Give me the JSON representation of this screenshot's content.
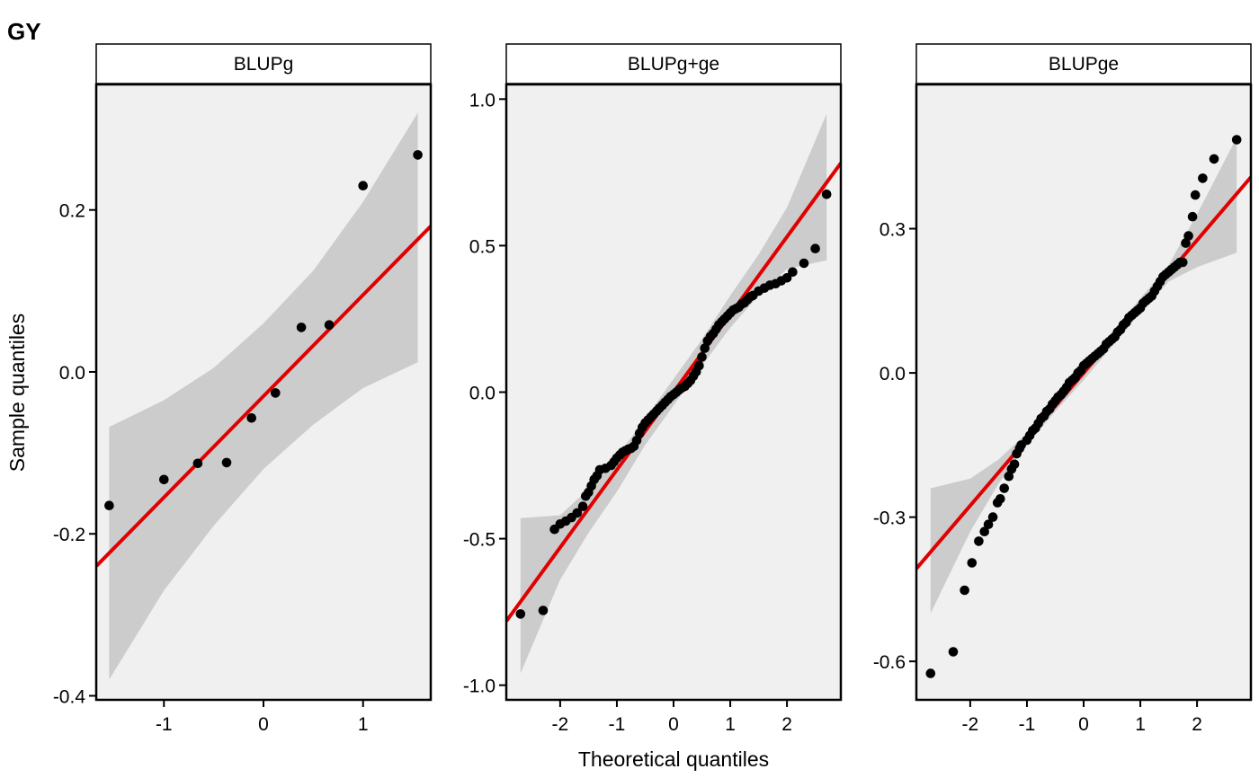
{
  "chart_data": {
    "type": "scatter",
    "subtype": "qq-plot",
    "title": "GY",
    "xlabel": "Theoretical quantiles",
    "ylabel": "Sample quantiles",
    "colors": {
      "panel_background": "#f0f0f0",
      "confidence_band": "#cccccc",
      "reference_line": "#e00000",
      "points": "#000000",
      "strip_background": "#ffffff"
    },
    "panels": [
      {
        "strip": "BLUPg",
        "xlim": [
          -1.68,
          1.68
        ],
        "ylim": [
          -0.405,
          0.355
        ],
        "xticks": [
          -1,
          0,
          1
        ],
        "xtick_labels": [
          "-1",
          "0",
          "1"
        ],
        "yticks": [
          -0.4,
          -0.2,
          0.0,
          0.2
        ],
        "ytick_labels": [
          "-0.4",
          "-0.2",
          "0.0",
          "0.2"
        ],
        "line": {
          "intercept": -0.03,
          "slope": 0.125
        },
        "band": {
          "x": [
            -1.55,
            -1.0,
            -0.5,
            0.0,
            0.5,
            1.0,
            1.55
          ],
          "lower": [
            -0.38,
            -0.27,
            -0.19,
            -0.12,
            -0.065,
            -0.02,
            0.012
          ],
          "upper": [
            -0.068,
            -0.035,
            0.005,
            0.06,
            0.125,
            0.21,
            0.32
          ]
        },
        "points": [
          [
            -1.55,
            -0.165
          ],
          [
            -1.0,
            -0.133
          ],
          [
            -0.66,
            -0.113
          ],
          [
            -0.37,
            -0.112
          ],
          [
            -0.12,
            -0.057
          ],
          [
            0.12,
            -0.026
          ],
          [
            0.38,
            0.055
          ],
          [
            0.66,
            0.058
          ],
          [
            1.0,
            0.23
          ],
          [
            1.55,
            0.268
          ]
        ]
      },
      {
        "strip": "BLUPg+ge",
        "xlim": [
          -2.95,
          2.95
        ],
        "ylim": [
          -1.05,
          1.05
        ],
        "xticks": [
          -2,
          -1,
          0,
          1,
          2
        ],
        "xtick_labels": [
          "-2",
          "-1",
          "0",
          "1",
          "2"
        ],
        "yticks": [
          -1.0,
          -0.5,
          0.0,
          0.5,
          1.0
        ],
        "ytick_labels": [
          "-1.0",
          "-0.5",
          "0.0",
          "0.5",
          "1.0"
        ],
        "line": {
          "intercept": 0.0,
          "slope": 0.265
        },
        "band": {
          "x": [
            -2.7,
            -2.0,
            -1.5,
            -1.0,
            -0.5,
            0.0,
            0.5,
            1.0,
            1.5,
            2.0,
            2.7
          ],
          "lower": [
            -0.96,
            -0.64,
            -0.48,
            -0.34,
            -0.18,
            -0.045,
            0.09,
            0.22,
            0.33,
            0.42,
            0.45
          ],
          "upper": [
            -0.43,
            -0.42,
            -0.33,
            -0.22,
            -0.09,
            0.045,
            0.18,
            0.33,
            0.47,
            0.63,
            0.95
          ]
        },
        "points": [
          [
            -2.7,
            -0.757
          ],
          [
            -2.3,
            -0.745
          ],
          [
            -2.1,
            -0.468
          ],
          [
            -2.0,
            -0.45
          ],
          [
            -1.9,
            -0.44
          ],
          [
            -1.8,
            -0.428
          ],
          [
            -1.7,
            -0.412
          ],
          [
            -1.6,
            -0.39
          ],
          [
            -1.55,
            -0.355
          ],
          [
            -1.5,
            -0.342
          ],
          [
            -1.45,
            -0.32
          ],
          [
            -1.4,
            -0.298
          ],
          [
            -1.35,
            -0.285
          ],
          [
            -1.3,
            -0.265
          ],
          [
            -1.2,
            -0.26
          ],
          [
            -1.1,
            -0.25
          ],
          [
            -1.05,
            -0.238
          ],
          [
            -1.0,
            -0.225
          ],
          [
            -0.95,
            -0.215
          ],
          [
            -0.9,
            -0.205
          ],
          [
            -0.85,
            -0.2
          ],
          [
            -0.8,
            -0.195
          ],
          [
            -0.75,
            -0.192
          ],
          [
            -0.7,
            -0.185
          ],
          [
            -0.65,
            -0.165
          ],
          [
            -0.6,
            -0.14
          ],
          [
            -0.55,
            -0.12
          ],
          [
            -0.5,
            -0.105
          ],
          [
            -0.45,
            -0.095
          ],
          [
            -0.4,
            -0.085
          ],
          [
            -0.35,
            -0.075
          ],
          [
            -0.3,
            -0.065
          ],
          [
            -0.25,
            -0.055
          ],
          [
            -0.2,
            -0.045
          ],
          [
            -0.15,
            -0.035
          ],
          [
            -0.1,
            -0.025
          ],
          [
            -0.05,
            -0.015
          ],
          [
            0.0,
            -0.008
          ],
          [
            0.05,
            0.0
          ],
          [
            0.1,
            0.008
          ],
          [
            0.15,
            0.015
          ],
          [
            0.2,
            0.02
          ],
          [
            0.25,
            0.03
          ],
          [
            0.3,
            0.04
          ],
          [
            0.35,
            0.055
          ],
          [
            0.4,
            0.07
          ],
          [
            0.45,
            0.09
          ],
          [
            0.5,
            0.12
          ],
          [
            0.55,
            0.15
          ],
          [
            0.6,
            0.175
          ],
          [
            0.65,
            0.19
          ],
          [
            0.7,
            0.2
          ],
          [
            0.75,
            0.215
          ],
          [
            0.8,
            0.23
          ],
          [
            0.85,
            0.24
          ],
          [
            0.9,
            0.25
          ],
          [
            0.95,
            0.26
          ],
          [
            1.0,
            0.27
          ],
          [
            1.05,
            0.28
          ],
          [
            1.1,
            0.285
          ],
          [
            1.15,
            0.29
          ],
          [
            1.2,
            0.3
          ],
          [
            1.25,
            0.305
          ],
          [
            1.3,
            0.315
          ],
          [
            1.35,
            0.325
          ],
          [
            1.4,
            0.33
          ],
          [
            1.5,
            0.345
          ],
          [
            1.6,
            0.355
          ],
          [
            1.7,
            0.365
          ],
          [
            1.8,
            0.37
          ],
          [
            1.9,
            0.38
          ],
          [
            2.0,
            0.39
          ],
          [
            2.1,
            0.41
          ],
          [
            2.3,
            0.44
          ],
          [
            2.5,
            0.49
          ],
          [
            2.7,
            0.675
          ]
        ]
      },
      {
        "strip": "BLUPge",
        "xlim": [
          -2.95,
          2.95
        ],
        "ylim": [
          -0.68,
          0.6
        ],
        "xticks": [
          -2,
          -1,
          0,
          1,
          2
        ],
        "xtick_labels": [
          "-2",
          "-1",
          "0",
          "1",
          "2"
        ],
        "yticks": [
          -0.6,
          -0.3,
          0.0,
          0.3
        ],
        "ytick_labels": [
          "-0.6",
          "-0.3",
          "0.0",
          "0.3"
        ],
        "line": {
          "intercept": 0.0,
          "slope": 0.138
        },
        "band": {
          "x": [
            -2.7,
            -2.0,
            -1.5,
            -1.0,
            -0.5,
            0.0,
            0.5,
            1.0,
            1.5,
            2.0,
            2.7
          ],
          "lower": [
            -0.5,
            -0.33,
            -0.23,
            -0.15,
            -0.08,
            -0.015,
            0.055,
            0.125,
            0.19,
            0.22,
            0.25
          ],
          "upper": [
            -0.24,
            -0.22,
            -0.18,
            -0.125,
            -0.055,
            0.015,
            0.085,
            0.155,
            0.225,
            0.33,
            0.49
          ]
        },
        "points": [
          [
            -2.7,
            -0.625
          ],
          [
            -2.3,
            -0.58
          ],
          [
            -2.1,
            -0.452
          ],
          [
            -1.97,
            -0.395
          ],
          [
            -1.85,
            -0.35
          ],
          [
            -1.75,
            -0.33
          ],
          [
            -1.68,
            -0.315
          ],
          [
            -1.6,
            -0.3
          ],
          [
            -1.52,
            -0.27
          ],
          [
            -1.47,
            -0.262
          ],
          [
            -1.4,
            -0.24
          ],
          [
            -1.32,
            -0.215
          ],
          [
            -1.27,
            -0.2
          ],
          [
            -1.22,
            -0.19
          ],
          [
            -1.18,
            -0.168
          ],
          [
            -1.13,
            -0.157
          ],
          [
            -1.1,
            -0.15
          ],
          [
            -1.0,
            -0.14
          ],
          [
            -0.95,
            -0.13
          ],
          [
            -0.9,
            -0.12
          ],
          [
            -0.85,
            -0.115
          ],
          [
            -0.8,
            -0.105
          ],
          [
            -0.75,
            -0.095
          ],
          [
            -0.7,
            -0.09
          ],
          [
            -0.65,
            -0.08
          ],
          [
            -0.6,
            -0.075
          ],
          [
            -0.55,
            -0.065
          ],
          [
            -0.5,
            -0.058
          ],
          [
            -0.45,
            -0.05
          ],
          [
            -0.4,
            -0.045
          ],
          [
            -0.35,
            -0.038
          ],
          [
            -0.3,
            -0.03
          ],
          [
            -0.25,
            -0.02
          ],
          [
            -0.2,
            -0.015
          ],
          [
            -0.15,
            -0.01
          ],
          [
            -0.1,
            0.0
          ],
          [
            -0.05,
            0.005
          ],
          [
            0.0,
            0.015
          ],
          [
            0.05,
            0.02
          ],
          [
            0.1,
            0.025
          ],
          [
            0.15,
            0.03
          ],
          [
            0.2,
            0.035
          ],
          [
            0.25,
            0.04
          ],
          [
            0.3,
            0.045
          ],
          [
            0.35,
            0.05
          ],
          [
            0.4,
            0.06
          ],
          [
            0.45,
            0.065
          ],
          [
            0.5,
            0.07
          ],
          [
            0.55,
            0.075
          ],
          [
            0.6,
            0.085
          ],
          [
            0.65,
            0.09
          ],
          [
            0.7,
            0.1
          ],
          [
            0.75,
            0.105
          ],
          [
            0.8,
            0.115
          ],
          [
            0.85,
            0.12
          ],
          [
            0.9,
            0.125
          ],
          [
            0.95,
            0.13
          ],
          [
            1.0,
            0.135
          ],
          [
            1.05,
            0.145
          ],
          [
            1.1,
            0.15
          ],
          [
            1.15,
            0.155
          ],
          [
            1.2,
            0.16
          ],
          [
            1.25,
            0.17
          ],
          [
            1.3,
            0.18
          ],
          [
            1.35,
            0.19
          ],
          [
            1.4,
            0.2
          ],
          [
            1.45,
            0.205
          ],
          [
            1.5,
            0.21
          ],
          [
            1.55,
            0.215
          ],
          [
            1.6,
            0.22
          ],
          [
            1.65,
            0.225
          ],
          [
            1.7,
            0.23
          ],
          [
            1.75,
            0.23
          ],
          [
            1.8,
            0.27
          ],
          [
            1.85,
            0.285
          ],
          [
            1.92,
            0.325
          ],
          [
            1.97,
            0.37
          ],
          [
            2.1,
            0.405
          ],
          [
            2.3,
            0.445
          ],
          [
            2.7,
            0.485
          ]
        ]
      }
    ]
  }
}
